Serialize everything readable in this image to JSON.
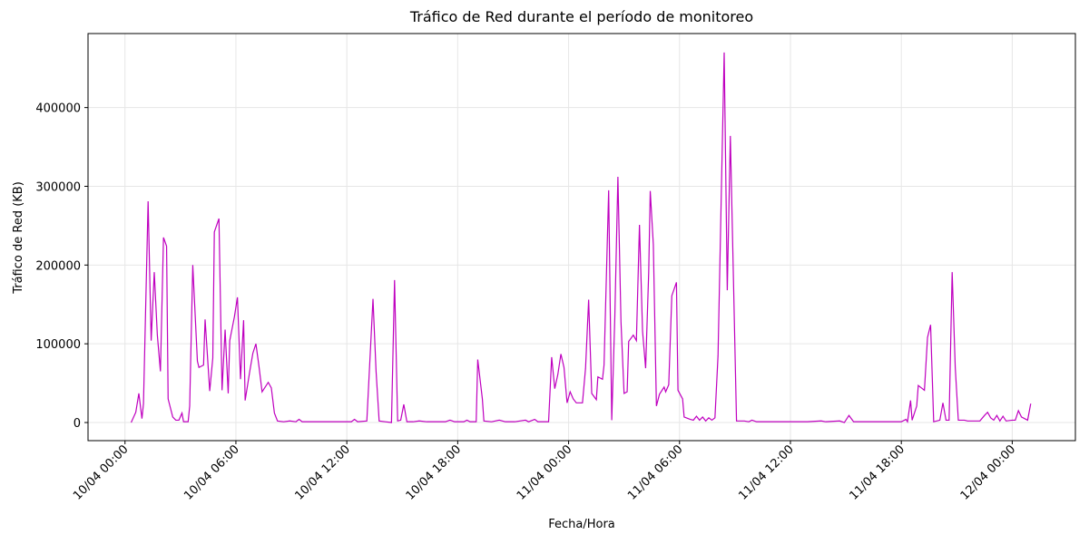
{
  "chart_data": {
    "type": "line",
    "title": "Tráfico de Red durante el período de monitoreo",
    "x_label": "Fecha/Hora",
    "y_label": "Tráfico de Red (KB)",
    "x": [
      "10/04 00:20",
      "10/04 00:35",
      "10/04 00:45",
      "10/04 00:55",
      "10/04 01:00",
      "10/04 01:15",
      "10/04 01:25",
      "10/04 01:35",
      "10/04 01:45",
      "10/04 01:55",
      "10/04 02:05",
      "10/04 02:15",
      "10/04 02:20",
      "10/04 02:35",
      "10/04 02:45",
      "10/04 02:55",
      "10/04 03:05",
      "10/04 03:10",
      "10/04 03:25",
      "10/04 03:30",
      "10/04 03:40",
      "10/04 03:55",
      "10/04 04:00",
      "10/04 04:15",
      "10/04 04:20",
      "10/04 04:35",
      "10/04 04:45",
      "10/04 04:50",
      "10/04 05:05",
      "10/04 05:15",
      "10/04 05:25",
      "10/04 05:35",
      "10/04 05:40",
      "10/04 05:55",
      "10/04 06:05",
      "10/04 06:15",
      "10/04 06:25",
      "10/04 06:30",
      "10/04 06:45",
      "10/04 06:55",
      "10/04 07:05",
      "10/04 07:15",
      "10/04 07:25",
      "10/04 07:35",
      "10/04 07:45",
      "10/04 07:55",
      "10/04 08:05",
      "10/04 08:15",
      "10/04 08:35",
      "10/04 08:55",
      "10/04 09:15",
      "10/04 09:25",
      "10/04 09:35",
      "10/04 10:25",
      "10/04 11:25",
      "10/04 12:15",
      "10/04 12:25",
      "10/04 12:35",
      "10/04 13:05",
      "10/04 13:25",
      "10/04 13:35",
      "10/04 13:45",
      "10/04 14:05",
      "10/04 14:25",
      "10/04 14:35",
      "10/04 14:45",
      "10/04 14:55",
      "10/04 15:05",
      "10/04 15:15",
      "10/04 15:35",
      "10/04 15:55",
      "10/04 16:20",
      "10/04 16:50",
      "10/04 17:20",
      "10/04 17:35",
      "10/04 17:50",
      "10/04 18:20",
      "10/04 18:30",
      "10/04 18:40",
      "10/04 19:00",
      "10/04 19:05",
      "10/04 19:20",
      "10/04 19:25",
      "10/04 19:50",
      "10/04 20:15",
      "10/04 20:35",
      "10/04 21:05",
      "10/04 21:40",
      "10/04 21:50",
      "10/04 22:10",
      "10/04 22:20",
      "10/04 22:40",
      "10/04 22:55",
      "10/04 23:05",
      "10/04 23:15",
      "10/04 23:25",
      "10/04 23:35",
      "10/04 23:45",
      "10/04 23:55",
      "11/04 00:05",
      "11/04 00:15",
      "11/04 00:25",
      "11/04 00:45",
      "11/04 00:55",
      "11/04 01:05",
      "11/04 01:15",
      "11/04 01:30",
      "11/04 01:35",
      "11/04 01:50",
      "11/04 01:55",
      "11/04 02:10",
      "11/04 02:20",
      "11/04 02:30",
      "11/04 02:40",
      "11/04 02:50",
      "11/04 03:00",
      "11/04 03:10",
      "11/04 03:15",
      "11/04 03:30",
      "11/04 03:40",
      "11/04 03:50",
      "11/04 04:00",
      "11/04 04:10",
      "11/04 04:20",
      "11/04 04:25",
      "11/04 04:35",
      "11/04 04:45",
      "11/04 04:55",
      "11/04 05:10",
      "11/04 05:15",
      "11/04 05:25",
      "11/04 05:35",
      "11/04 05:50",
      "11/04 05:55",
      "11/04 06:10",
      "11/04 06:15",
      "11/04 06:35",
      "11/04 06:45",
      "11/04 06:55",
      "11/04 07:05",
      "11/04 07:15",
      "11/04 07:25",
      "11/04 07:35",
      "11/04 07:45",
      "11/04 07:55",
      "11/04 08:05",
      "11/04 08:25",
      "11/04 08:35",
      "11/04 08:45",
      "11/04 09:05",
      "11/04 09:30",
      "11/04 09:45",
      "11/04 09:55",
      "11/04 10:10",
      "11/04 11:00",
      "11/04 11:55",
      "11/04 12:55",
      "11/04 13:40",
      "11/04 13:55",
      "11/04 14:40",
      "11/04 14:55",
      "11/04 15:10",
      "11/04 15:25",
      "11/04 16:25",
      "11/04 17:20",
      "11/04 18:00",
      "11/04 18:15",
      "11/04 18:20",
      "11/04 18:30",
      "11/04 18:35",
      "11/04 18:50",
      "11/04 18:55",
      "11/04 19:05",
      "11/04 19:15",
      "11/04 19:25",
      "11/04 19:35",
      "11/04 19:45",
      "11/04 20:05",
      "11/04 20:15",
      "11/04 20:25",
      "11/04 20:35",
      "11/04 20:45",
      "11/04 20:55",
      "11/04 21:05",
      "11/04 21:25",
      "11/04 21:35",
      "11/04 22:15",
      "11/04 22:30",
      "11/04 22:40",
      "11/04 22:50",
      "11/04 23:00",
      "11/04 23:10",
      "11/04 23:20",
      "11/04 23:30",
      "11/04 23:40",
      "12/04 00:00",
      "12/04 00:10",
      "12/04 00:20",
      "12/04 00:30",
      "12/04 00:50",
      "12/04 01:00"
    ],
    "series": [
      {
        "name": "Tráfico de Red",
        "color": "#bf00bf",
        "values": [
          0,
          13000,
          37000,
          5000,
          24000,
          281000,
          104000,
          191000,
          111000,
          65000,
          235000,
          224000,
          30000,
          7000,
          3000,
          3000,
          12000,
          1000,
          1000,
          21000,
          200000,
          78000,
          70000,
          73000,
          131000,
          40000,
          82000,
          242000,
          259000,
          41000,
          118000,
          37000,
          104000,
          134000,
          159000,
          55000,
          130000,
          28000,
          65000,
          88000,
          100000,
          71000,
          39000,
          45000,
          51000,
          44000,
          12000,
          2000,
          1000,
          2000,
          1000,
          4000,
          1000,
          1000,
          1000,
          1000,
          4000,
          1000,
          2000,
          157000,
          65000,
          2000,
          1000,
          0,
          181000,
          2000,
          3000,
          23000,
          1000,
          1000,
          2000,
          1000,
          1000,
          1000,
          3000,
          1000,
          1000,
          3000,
          1000,
          1000,
          80000,
          30000,
          2000,
          1000,
          3000,
          1000,
          1000,
          3000,
          1000,
          4000,
          1000,
          1000,
          1000,
          83000,
          43000,
          61000,
          87000,
          70000,
          25000,
          39000,
          30000,
          25000,
          25000,
          69000,
          156000,
          37000,
          29000,
          58000,
          55000,
          73000,
          295000,
          3000,
          134000,
          312000,
          128000,
          37000,
          39000,
          103000,
          111000,
          104000,
          251000,
          116000,
          69000,
          191000,
          294000,
          226000,
          21000,
          36000,
          45000,
          39000,
          48000,
          161000,
          178000,
          41000,
          30000,
          7000,
          4000,
          3000,
          8000,
          3000,
          7000,
          2000,
          6000,
          3000,
          6000,
          85000,
          470000,
          168000,
          364000,
          2000,
          2000,
          1000,
          3000,
          1000,
          1000,
          1000,
          1000,
          2000,
          1000,
          2000,
          0,
          9000,
          1000,
          1000,
          1000,
          1000,
          4000,
          1000,
          28000,
          3000,
          21000,
          47000,
          44000,
          41000,
          108000,
          124000,
          1000,
          3000,
          25000,
          3000,
          3000,
          191000,
          70000,
          3000,
          3000,
          2000,
          2000,
          9000,
          13000,
          6000,
          3000,
          9000,
          2000,
          8000,
          2000,
          3000,
          3000,
          15000,
          7000,
          3000,
          24000
        ]
      }
    ],
    "xlim": [
      "09/04 22:00",
      "12/04 03:25"
    ],
    "xticks": [
      "10/04 00:00",
      "10/04 06:00",
      "10/04 12:00",
      "10/04 18:00",
      "11/04 00:00",
      "11/04 06:00",
      "11/04 12:00",
      "11/04 18:00",
      "12/04 00:00"
    ],
    "ylim": [
      -23000,
      494000
    ],
    "yticks": [
      0,
      100000,
      200000,
      300000,
      400000
    ],
    "grid": true
  }
}
